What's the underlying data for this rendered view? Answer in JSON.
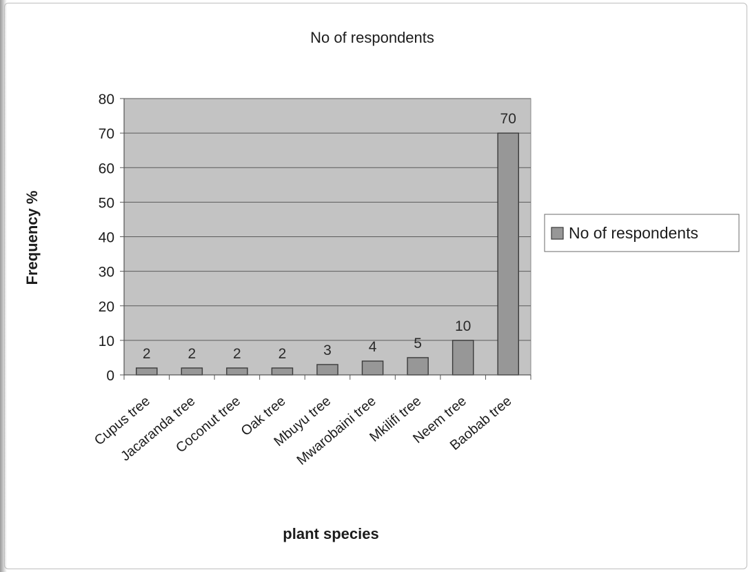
{
  "chart_data": {
    "type": "bar",
    "title": "No of respondents",
    "xlabel": "plant species",
    "ylabel": "Frequency %",
    "categories": [
      "Cupus tree",
      "Jacaranda tree",
      "Coconut tree",
      "Oak tree",
      "Mbuyu tree",
      "Mwarobaini tree",
      "Mkilifi tree",
      "Neem tree",
      "Baobab tree"
    ],
    "series": [
      {
        "name": "No of respondents",
        "values": [
          2,
          2,
          2,
          2,
          3,
          4,
          5,
          10,
          70
        ]
      }
    ],
    "ylim": [
      0,
      80
    ],
    "yticks": [
      "0",
      "10",
      "20",
      "30",
      "40",
      "50",
      "60",
      "70",
      "80"
    ],
    "data_labels": [
      "2",
      "2",
      "2",
      "2",
      "3",
      "4",
      "5",
      "10",
      "70"
    ],
    "grid": true,
    "legend_position": "right",
    "colors": {
      "plot_area": "#c3c3c3",
      "bar_fill": "#979797",
      "bar_stroke": "#3a3a3a",
      "gridline": "#5a5a5a"
    }
  }
}
